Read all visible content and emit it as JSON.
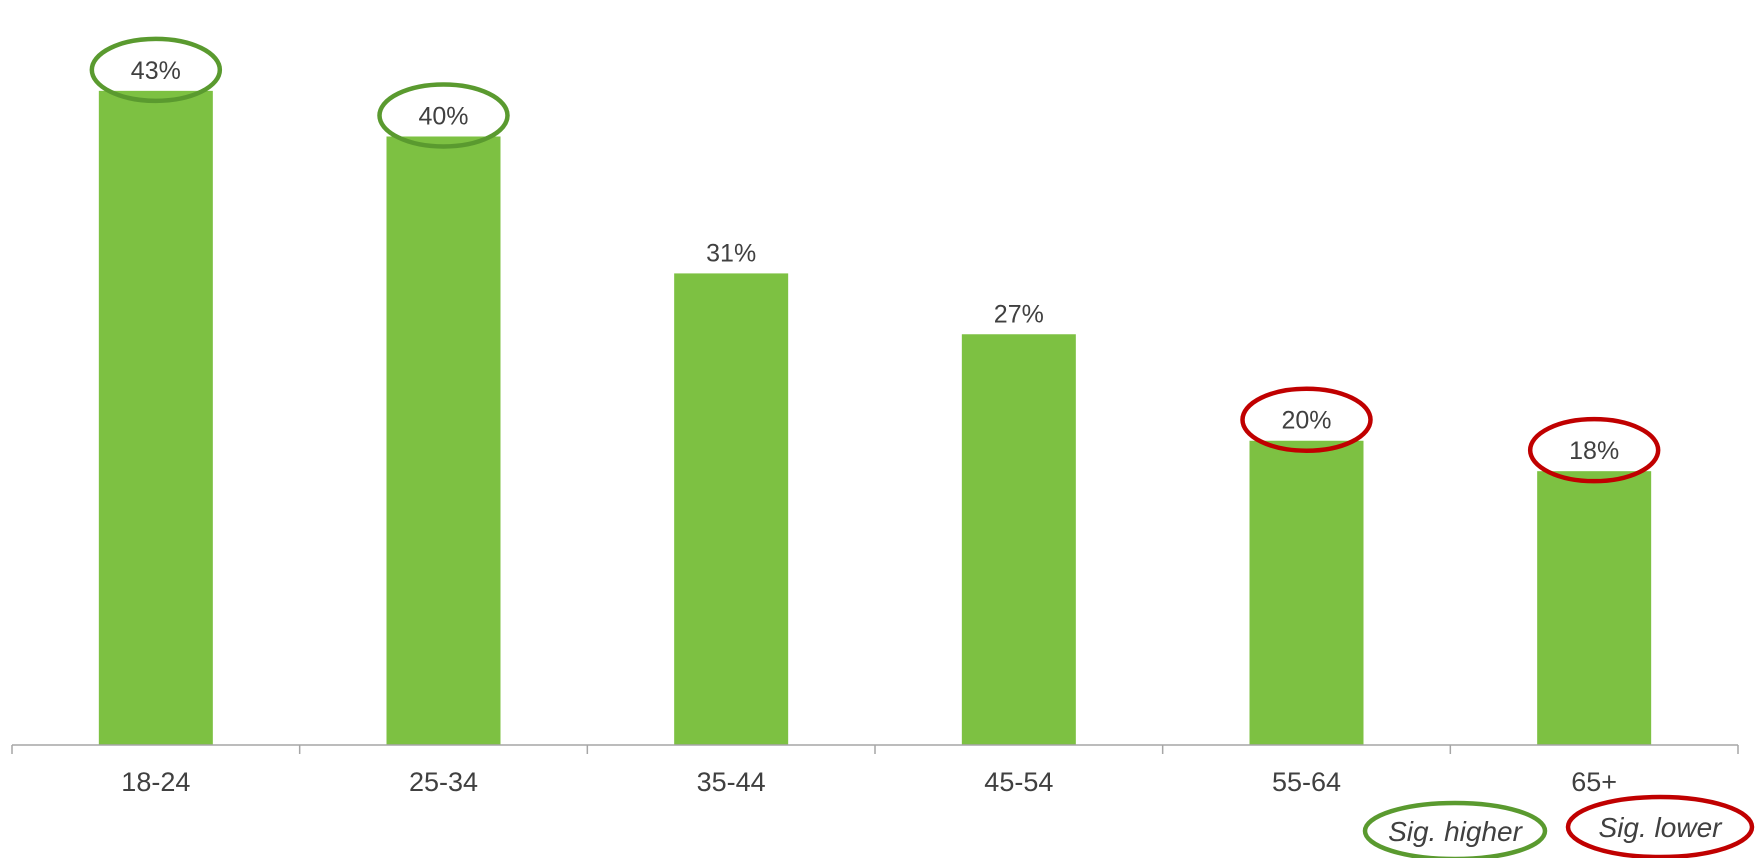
{
  "chart_data": {
    "type": "bar",
    "title": "",
    "xlabel": "",
    "ylabel": "",
    "categories": [
      "18-24",
      "25-34",
      "35-44",
      "45-54",
      "55-64",
      "65+"
    ],
    "values": [
      43,
      40,
      31,
      27,
      20,
      18
    ],
    "value_labels": [
      "43%",
      "40%",
      "31%",
      "27%",
      "20%",
      "18%"
    ],
    "value_unit": "%",
    "ylim": [
      0,
      47
    ],
    "grid": false,
    "significance": [
      "higher",
      "higher",
      "none",
      "none",
      "lower",
      "lower"
    ],
    "legend": {
      "position": "bottom-right",
      "items": [
        {
          "label": "Sig. higher",
          "key": "higher"
        },
        {
          "label": "Sig. lower",
          "key": "lower"
        }
      ]
    }
  },
  "colors": {
    "bar": "#7dc142",
    "sig_higher": "#5a9a2f",
    "sig_lower": "#c00000",
    "axis": "#a6a6a6",
    "label_text": "#404040"
  }
}
